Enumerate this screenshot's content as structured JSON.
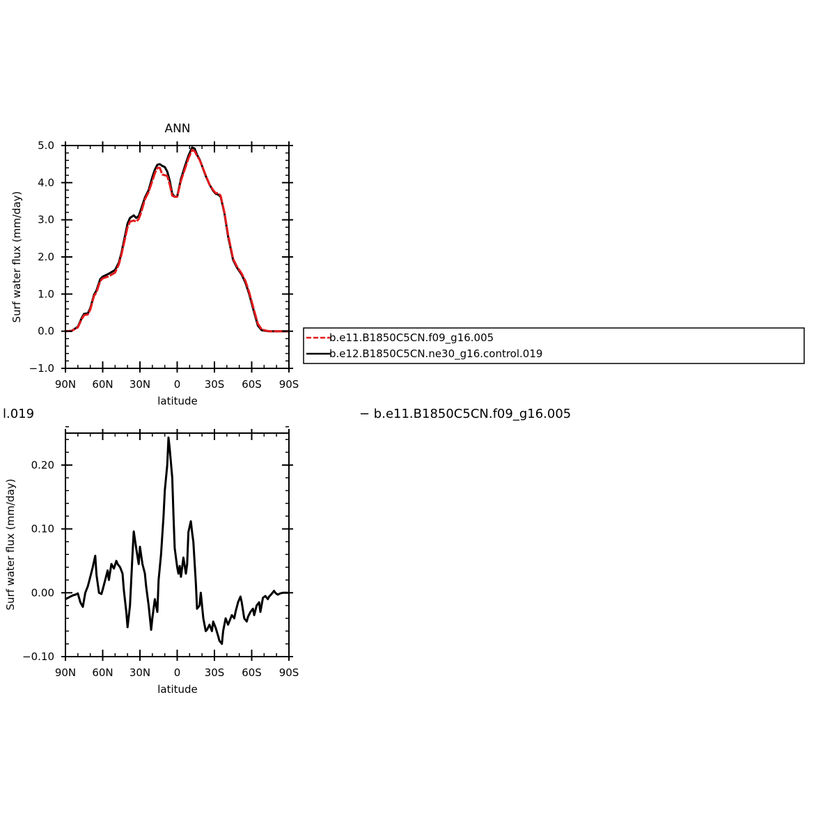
{
  "chart_data": [
    {
      "type": "line",
      "title": "ANN",
      "xlabel": "latitude",
      "ylabel": "Surf water flux (mm/day)",
      "xlim": [
        90,
        -90
      ],
      "ylim": [
        -1.0,
        5.0
      ],
      "x_ticks": [
        {
          "value": 90,
          "label": "90N"
        },
        {
          "value": 60,
          "label": "60N"
        },
        {
          "value": 30,
          "label": "30N"
        },
        {
          "value": 0,
          "label": "0"
        },
        {
          "value": -30,
          "label": "30S"
        },
        {
          "value": -60,
          "label": "60S"
        },
        {
          "value": -90,
          "label": "90S"
        }
      ],
      "y_ticks": [
        {
          "value": 5.0,
          "label": "5.0"
        },
        {
          "value": 4.0,
          "label": "4.0"
        },
        {
          "value": 3.0,
          "label": "3.0"
        },
        {
          "value": 2.0,
          "label": "2.0"
        },
        {
          "value": 1.0,
          "label": "1.0"
        },
        {
          "value": 0.0,
          "label": "0.0"
        },
        {
          "value": -1.0,
          "label": "−1.0"
        }
      ],
      "legend": "right",
      "series": [
        {
          "name": "b.e11.B1850C5CN.f09_g16.005",
          "color": "#e31a1c",
          "dash": true,
          "x": [
            90,
            85,
            80,
            77,
            75,
            72,
            70,
            67,
            65,
            62,
            60,
            55,
            50,
            47,
            45,
            40,
            38,
            35,
            33,
            31,
            29,
            26,
            23,
            20,
            18,
            16,
            14,
            12,
            10,
            8,
            6,
            4,
            2,
            0,
            -3,
            -6,
            -9,
            -12,
            -14,
            -16,
            -18,
            -20,
            -23,
            -26,
            -29,
            -31,
            -33,
            -35,
            -38,
            -41,
            -45,
            -48,
            -52,
            -55,
            -58,
            -62,
            -65,
            -68,
            -71,
            -74,
            -78,
            -82,
            -85,
            -90
          ],
          "values": [
            0.0,
            0.01,
            0.1,
            0.32,
            0.43,
            0.45,
            0.58,
            0.95,
            1.05,
            1.35,
            1.42,
            1.48,
            1.58,
            1.8,
            2.05,
            2.8,
            2.95,
            2.98,
            2.95,
            3.02,
            3.2,
            3.55,
            3.75,
            4.05,
            4.25,
            4.4,
            4.4,
            4.22,
            4.2,
            4.18,
            3.95,
            3.65,
            3.62,
            3.62,
            4.05,
            4.35,
            4.65,
            4.88,
            4.85,
            4.72,
            4.62,
            4.45,
            4.2,
            3.95,
            3.8,
            3.72,
            3.72,
            3.65,
            3.2,
            2.6,
            1.95,
            1.75,
            1.55,
            1.35,
            1.05,
            0.55,
            0.2,
            0.05,
            0.02,
            0.0,
            0.0,
            0.0,
            0.0,
            0.0
          ]
        },
        {
          "name": "b.e12.B1850C5CN.ne30_g16.control.019",
          "color": "#000000",
          "dash": false,
          "x": [
            90,
            85,
            80,
            77,
            75,
            72,
            70,
            67,
            65,
            62,
            60,
            55,
            50,
            47,
            45,
            40,
            38,
            35,
            33,
            31,
            29,
            26,
            23,
            20,
            18,
            16,
            14,
            12,
            10,
            8,
            6,
            4,
            2,
            0,
            -3,
            -6,
            -9,
            -12,
            -14,
            -16,
            -18,
            -20,
            -23,
            -26,
            -29,
            -31,
            -33,
            -35,
            -38,
            -41,
            -45,
            -48,
            -52,
            -55,
            -58,
            -62,
            -65,
            -68,
            -71,
            -74,
            -78,
            -82,
            -85,
            -90
          ],
          "values": [
            0.0,
            0.01,
            0.12,
            0.35,
            0.47,
            0.48,
            0.62,
            0.98,
            1.1,
            1.4,
            1.47,
            1.55,
            1.65,
            1.85,
            2.1,
            2.9,
            3.05,
            3.12,
            3.05,
            3.1,
            3.3,
            3.6,
            3.8,
            4.15,
            4.35,
            4.48,
            4.5,
            4.45,
            4.42,
            4.3,
            4.05,
            3.7,
            3.62,
            3.63,
            4.1,
            4.42,
            4.72,
            4.95,
            4.92,
            4.75,
            4.63,
            4.45,
            4.18,
            3.95,
            3.78,
            3.7,
            3.68,
            3.62,
            3.18,
            2.55,
            1.92,
            1.72,
            1.52,
            1.3,
            1.0,
            0.5,
            0.15,
            0.03,
            0.01,
            0.0,
            0.0,
            0.0,
            0.0,
            0.0
          ]
        }
      ]
    },
    {
      "type": "line",
      "title": "",
      "xlabel": "latitude",
      "ylabel": "Surf water flux (mm/day)",
      "xlim": [
        90,
        -90
      ],
      "ylim": [
        -0.1,
        0.25
      ],
      "x_ticks": [
        {
          "value": 90,
          "label": "90N"
        },
        {
          "value": 60,
          "label": "60N"
        },
        {
          "value": 30,
          "label": "30N"
        },
        {
          "value": 0,
          "label": "0"
        },
        {
          "value": -30,
          "label": "30S"
        },
        {
          "value": -60,
          "label": "60S"
        },
        {
          "value": -90,
          "label": "90S"
        }
      ],
      "y_ticks": [
        {
          "value": 0.2,
          "label": "0.20"
        },
        {
          "value": 0.1,
          "label": "0.10"
        },
        {
          "value": 0.0,
          "label": "0.00"
        },
        {
          "value": -0.1,
          "label": "−0.10"
        }
      ],
      "header_left": "l.019",
      "header_right": "−  b.e11.B1850C5CN.f09_g16.005",
      "series": [
        {
          "name": "",
          "color": "#000000",
          "dash": false,
          "x": [
            90,
            87,
            84,
            82,
            80,
            78,
            76,
            74,
            72,
            70,
            68,
            66,
            65,
            63,
            61,
            60,
            58,
            56,
            55,
            53,
            51,
            49,
            48,
            46,
            44,
            43,
            41,
            40,
            38,
            36,
            35,
            33,
            31,
            30,
            28,
            26,
            25,
            23,
            21,
            20,
            18,
            16,
            15,
            13,
            11,
            10,
            8,
            7,
            6,
            4,
            3,
            2,
            0,
            -1,
            -2,
            -3,
            -5,
            -7,
            -8,
            -9,
            -11,
            -12,
            -13,
            -15,
            -16,
            -18,
            -19,
            -21,
            -23,
            -24,
            -26,
            -28,
            -29,
            -31,
            -33,
            -34,
            -36,
            -37,
            -39,
            -41,
            -42,
            -44,
            -46,
            -47,
            -49,
            -51,
            -52,
            -54,
            -56,
            -57,
            -59,
            -61,
            -62,
            -64,
            -66,
            -67,
            -69,
            -71,
            -73,
            -74,
            -76,
            -78,
            -79,
            -81,
            -83,
            -85,
            -88,
            -90
          ],
          "values": [
            -0.01,
            -0.007,
            -0.004,
            -0.003,
            -0.001,
            -0.015,
            -0.022,
            0.0,
            0.01,
            0.025,
            0.04,
            0.058,
            0.028,
            0.0,
            -0.002,
            0.005,
            0.02,
            0.035,
            0.02,
            0.045,
            0.038,
            0.05,
            0.045,
            0.04,
            0.03,
            0.005,
            -0.03,
            -0.054,
            -0.02,
            0.06,
            0.096,
            0.07,
            0.045,
            0.072,
            0.045,
            0.03,
            0.01,
            -0.02,
            -0.058,
            -0.04,
            -0.01,
            -0.03,
            0.02,
            0.06,
            0.12,
            0.16,
            0.2,
            0.243,
            0.225,
            0.18,
            0.12,
            0.07,
            0.04,
            0.03,
            0.042,
            0.025,
            0.055,
            0.03,
            0.045,
            0.095,
            0.112,
            0.095,
            0.08,
            0.015,
            -0.025,
            -0.02,
            0.0,
            -0.04,
            -0.06,
            -0.058,
            -0.05,
            -0.06,
            -0.045,
            -0.055,
            -0.068,
            -0.075,
            -0.08,
            -0.06,
            -0.04,
            -0.05,
            -0.045,
            -0.035,
            -0.04,
            -0.03,
            -0.015,
            -0.006,
            -0.015,
            -0.04,
            -0.045,
            -0.038,
            -0.03,
            -0.025,
            -0.035,
            -0.02,
            -0.015,
            -0.03,
            -0.008,
            -0.005,
            -0.01,
            -0.006,
            -0.002,
            0.003,
            0.0,
            -0.003,
            -0.001,
            0.0,
            0.0,
            0.0
          ]
        }
      ]
    }
  ]
}
